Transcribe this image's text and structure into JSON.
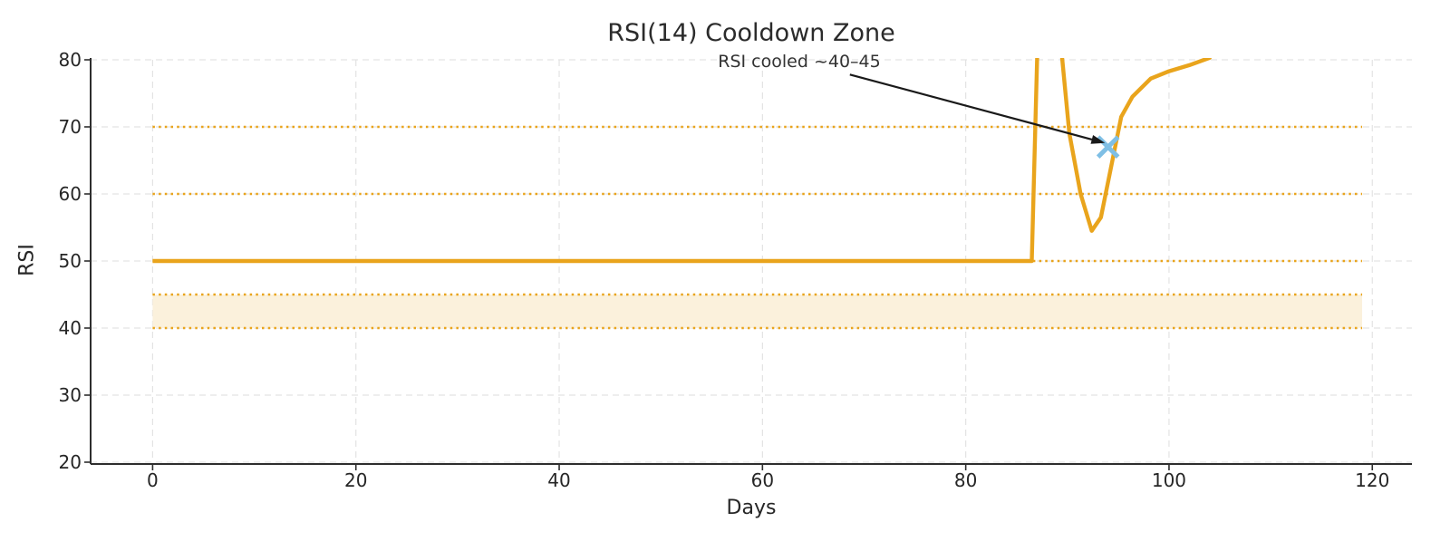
{
  "title": "RSI(14) Cooldown Zone",
  "annotation": {
    "text": "RSI cooled ~40–45",
    "arrow_from": [
      68.6,
      77.8
    ],
    "arrow_to": [
      93.7,
      67.6
    ],
    "arrow_color": "#1a1a1a"
  },
  "axes": {
    "xlabel": "Days",
    "ylabel": "RSI",
    "xticks": [
      0,
      20,
      40,
      60,
      80,
      100,
      120
    ],
    "yticks": [
      20,
      30,
      40,
      50,
      60,
      70,
      80
    ],
    "xlim": [
      -6.1,
      123.9
    ],
    "ylim": [
      20,
      80
    ],
    "grid": "dashed-light-gray"
  },
  "chart_data": {
    "type": "line",
    "xlabel": "Days",
    "ylabel": "RSI",
    "title": "RSI(14) Cooldown Zone",
    "ylim_clip_note": "values above 80 are clipped by the axis",
    "series": [
      {
        "name": "RSI(14)",
        "color": "#E9A41C",
        "linewidth": 4.4,
        "points": [
          [
            0,
            50
          ],
          [
            86.5,
            50
          ],
          [
            87.3,
            96
          ],
          [
            88.5,
            96
          ],
          [
            89.5,
            80
          ],
          [
            90.2,
            69
          ],
          [
            91.3,
            60
          ],
          [
            92.4,
            54.5
          ],
          [
            93.3,
            56.5
          ],
          [
            95.3,
            71.5
          ],
          [
            96.4,
            74.5
          ],
          [
            98.2,
            77.2
          ],
          [
            100,
            78.3
          ],
          [
            102,
            79.2
          ],
          [
            104,
            80.3
          ],
          [
            105,
            84
          ]
        ]
      }
    ],
    "threshold_lines": {
      "levels": [
        70,
        60,
        50,
        45,
        40
      ],
      "style": "dotted",
      "color": "#E9A41C",
      "x_range": [
        0,
        119
      ]
    },
    "cooldown_band": {
      "y_range": [
        40,
        45
      ],
      "x_range": [
        0,
        119
      ],
      "fill": "#FBF1DC"
    },
    "marker": {
      "day": 94,
      "rsi": 67,
      "shape": "x",
      "color": "#7FBFE5",
      "size": 22
    }
  },
  "colors": {
    "line_orange": "#E9A41C",
    "band_fill": "#FBF1DC",
    "marker_blue": "#7FBFE5",
    "grid_gray": "#E3E3E3",
    "spine": "#2e2e2e",
    "text": "#262626",
    "arrow": "#1a1a1a",
    "background": "#ffffff"
  }
}
